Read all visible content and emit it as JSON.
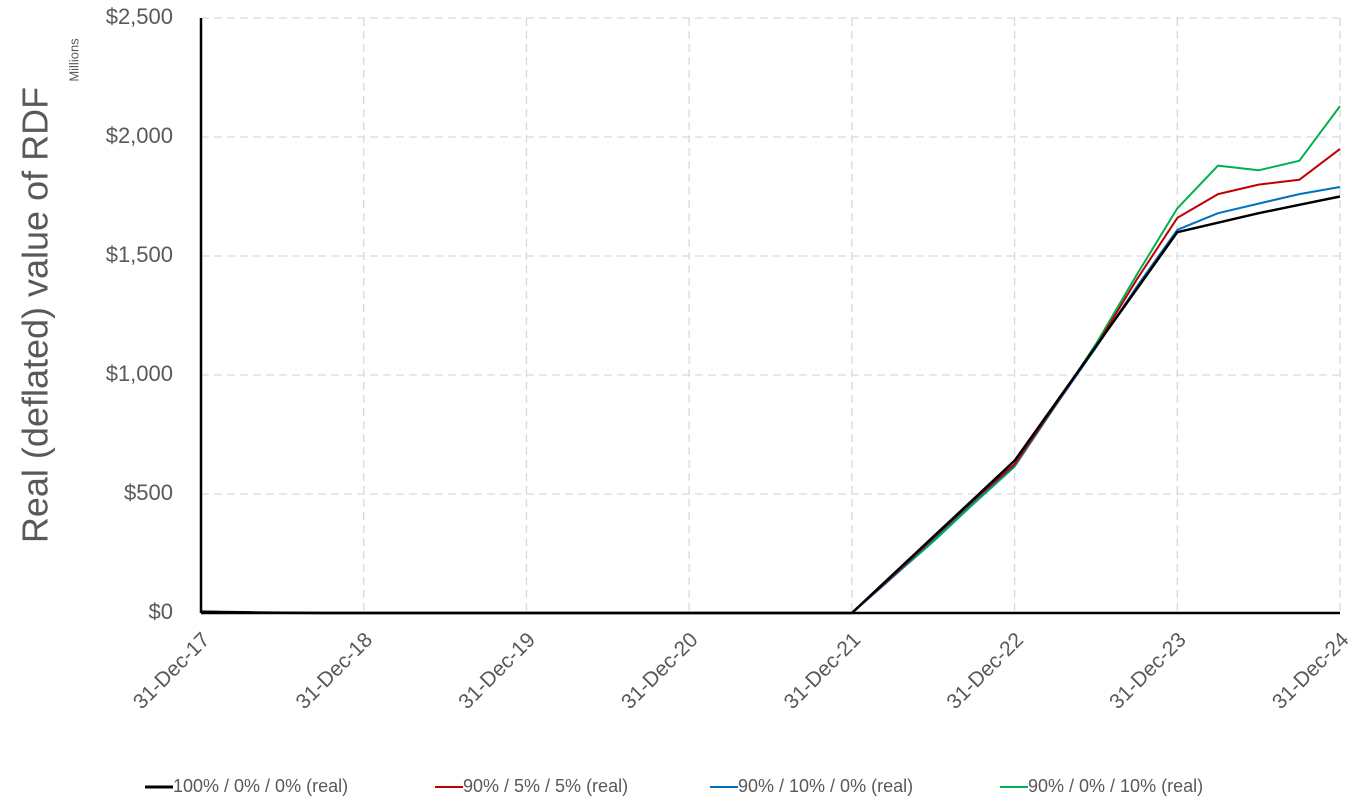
{
  "chart_data": {
    "type": "line",
    "y_title": "Real (deflated) value of RDF",
    "y_unit": "Millions",
    "categories": [
      "31-Dec-17",
      null,
      null,
      null,
      "31-Dec-18",
      null,
      null,
      null,
      "31-Dec-19",
      null,
      null,
      null,
      "31-Dec-20",
      null,
      null,
      null,
      "31-Dec-21",
      null,
      null,
      null,
      "31-Dec-22",
      null,
      null,
      null,
      "31-Dec-23",
      null,
      null,
      null,
      "31-Dec-24"
    ],
    "ylim": [
      0,
      2500
    ],
    "yticks": [
      {
        "value": 0,
        "label": "$0"
      },
      {
        "value": 500,
        "label": "$500"
      },
      {
        "value": 1000,
        "label": "$1,000"
      },
      {
        "value": 1500,
        "label": "$1,500"
      },
      {
        "value": 2000,
        "label": "$2,000"
      },
      {
        "value": 2500,
        "label": "$2,500"
      }
    ],
    "grid": true,
    "legend": "bottom",
    "series": [
      {
        "name": "100% / 0% / 0% (real)",
        "color": "#000000",
        "values": [
          5,
          3,
          1,
          0,
          0,
          0,
          0,
          0,
          0,
          0,
          0,
          0,
          0,
          0,
          0,
          0,
          0,
          160,
          320,
          480,
          640,
          880,
          1120,
          1360,
          1600,
          1640,
          1680,
          1715,
          1750
        ]
      },
      {
        "name": "90% / 5% / 5% (real)",
        "color": "#c00000",
        "values": [
          5,
          3,
          1,
          0,
          0,
          0,
          0,
          0,
          0,
          0,
          0,
          0,
          0,
          0,
          0,
          0,
          0,
          155,
          315,
          475,
          625,
          875,
          1120,
          1400,
          1660,
          1760,
          1800,
          1820,
          1950
        ]
      },
      {
        "name": "90% / 10% / 0% (real)",
        "color": "#0070c0",
        "values": [
          5,
          3,
          1,
          0,
          0,
          0,
          0,
          0,
          0,
          0,
          0,
          0,
          0,
          0,
          0,
          0,
          0,
          150,
          310,
          470,
          620,
          870,
          1115,
          1370,
          1610,
          1680,
          1720,
          1760,
          1790
        ]
      },
      {
        "name": "90% / 0% / 10% (real)",
        "color": "#00b050",
        "values": [
          5,
          3,
          1,
          0,
          0,
          0,
          0,
          0,
          0,
          0,
          0,
          0,
          0,
          0,
          0,
          0,
          0,
          150,
          300,
          460,
          615,
          870,
          1130,
          1420,
          1700,
          1880,
          1860,
          1900,
          2130
        ]
      }
    ]
  }
}
